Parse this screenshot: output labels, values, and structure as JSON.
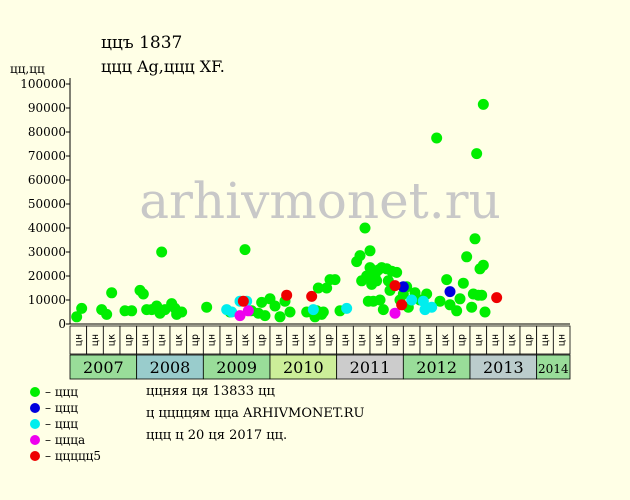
{
  "header": {
    "title_line1": "ццъ 1837",
    "title_line2": "ццц Ag,ццц XF.",
    "y_unit": "цц,цц"
  },
  "legend": [
    {
      "color": "#00ee00",
      "label": "– ццц"
    },
    {
      "color": "#0000dd",
      "label": "– ццц"
    },
    {
      "color": "#00eeee",
      "label": "– ццц"
    },
    {
      "color": "#ee00ee",
      "label": "– ццца"
    },
    {
      "color": "#ee0000",
      "label": "– ццццц5"
    }
  ],
  "info": {
    "line1": "ццняя ця 13833 цц",
    "line2": "ц ццццям цца ARHIVMONET.RU",
    "line3": "ццц ц 20 ця 2017 цц."
  },
  "watermark": "arhivmonet.ru",
  "chart_data": {
    "type": "scatter",
    "title": "ццъ 1837",
    "subtitle": "ццц Ag,ццц XF.",
    "ylabel": "цц,цц",
    "ylim": [
      0,
      100000
    ],
    "y_ticks": [
      0,
      10000,
      20000,
      30000,
      40000,
      50000,
      60000,
      70000,
      80000,
      90000,
      100000
    ],
    "grid": false,
    "legend_position": "bottom-left",
    "years": [
      {
        "label": "2007",
        "start": 0,
        "months": 4,
        "color": "#99dd99"
      },
      {
        "label": "2008",
        "start": 4,
        "months": 4,
        "color": "#99cccc"
      },
      {
        "label": "2009",
        "start": 8,
        "months": 4,
        "color": "#99dd99"
      },
      {
        "label": "2010",
        "start": 12,
        "months": 4,
        "color": "#ccee99"
      },
      {
        "label": "2011",
        "start": 16,
        "months": 4,
        "color": "#cccccc"
      },
      {
        "label": "2012",
        "start": 20,
        "months": 4,
        "color": "#99dd99"
      },
      {
        "label": "2013",
        "start": 24,
        "months": 4,
        "color": "#bbcccc"
      },
      {
        "label": "2014",
        "start": 28,
        "months": 2,
        "color": "#99dd99"
      }
    ],
    "month_labels": [
      "цн",
      "цн",
      "цк",
      "цр",
      "цн",
      "цн",
      "цк",
      "цр",
      "цн",
      "цн",
      "цк",
      "цр",
      "цн",
      "цн",
      "цк",
      "цр",
      "цн",
      "цн",
      "цк",
      "цр",
      "цн",
      "цн",
      "цк",
      "цр",
      "цн",
      "цн",
      "цк",
      "цр",
      "цн",
      "цн"
    ],
    "series": [
      {
        "color": "#00ee00",
        "points": [
          [
            0.4,
            3000
          ],
          [
            0.7,
            6500
          ],
          [
            1.9,
            6000
          ],
          [
            2.2,
            4000
          ],
          [
            2.5,
            13000
          ],
          [
            3.3,
            5500
          ],
          [
            3.7,
            5500
          ],
          [
            4.2,
            14000
          ],
          [
            4.4,
            12500
          ],
          [
            4.6,
            6000
          ],
          [
            4.9,
            6000
          ],
          [
            5.2,
            7500
          ],
          [
            5.4,
            4500
          ],
          [
            5.7,
            6000
          ],
          [
            5.5,
            30000
          ],
          [
            6.1,
            8500
          ],
          [
            6.3,
            6500
          ],
          [
            6.4,
            4000
          ],
          [
            6.7,
            5000
          ],
          [
            8.2,
            7000
          ],
          [
            9.6,
            5000
          ],
          [
            10.5,
            31000
          ],
          [
            10.9,
            5500
          ],
          [
            11.3,
            4500
          ],
          [
            11.5,
            9000
          ],
          [
            11.7,
            3500
          ],
          [
            12.0,
            10500
          ],
          [
            12.3,
            7500
          ],
          [
            12.6,
            3000
          ],
          [
            12.9,
            9500
          ],
          [
            13.2,
            5000
          ],
          [
            14.2,
            5000
          ],
          [
            14.5,
            5000
          ],
          [
            14.7,
            3000
          ],
          [
            14.8,
            5500
          ],
          [
            14.9,
            15000
          ],
          [
            15.1,
            4000
          ],
          [
            15.2,
            5000
          ],
          [
            15.4,
            15000
          ],
          [
            15.6,
            18500
          ],
          [
            15.9,
            18500
          ],
          [
            16.2,
            5500
          ],
          [
            17.2,
            26000
          ],
          [
            17.4,
            28500
          ],
          [
            17.5,
            18000
          ],
          [
            17.7,
            40000
          ],
          [
            17.8,
            20000
          ],
          [
            17.9,
            9500
          ],
          [
            18.0,
            30500
          ],
          [
            18.0,
            23500
          ],
          [
            18.1,
            16500
          ],
          [
            18.2,
            9500
          ],
          [
            18.3,
            20000
          ],
          [
            18.4,
            18000
          ],
          [
            18.5,
            22500
          ],
          [
            18.6,
            10000
          ],
          [
            18.7,
            23500
          ],
          [
            18.8,
            6000
          ],
          [
            19.0,
            23000
          ],
          [
            19.1,
            18000
          ],
          [
            19.2,
            14000
          ],
          [
            19.3,
            22000
          ],
          [
            19.6,
            21500
          ],
          [
            19.8,
            10000
          ],
          [
            20.0,
            12500
          ],
          [
            20.2,
            15500
          ],
          [
            20.3,
            7000
          ],
          [
            20.7,
            13000
          ],
          [
            21.0,
            10000
          ],
          [
            21.4,
            12500
          ],
          [
            22.0,
            77500
          ],
          [
            22.2,
            9500
          ],
          [
            22.6,
            18500
          ],
          [
            22.8,
            8000
          ],
          [
            23.2,
            5500
          ],
          [
            23.4,
            10500
          ],
          [
            23.6,
            17000
          ],
          [
            23.8,
            28000
          ],
          [
            24.1,
            7000
          ],
          [
            24.2,
            12500
          ],
          [
            24.3,
            35500
          ],
          [
            24.4,
            71000
          ],
          [
            24.5,
            12000
          ],
          [
            24.6,
            23000
          ],
          [
            24.7,
            12000
          ],
          [
            24.8,
            24500
          ],
          [
            24.9,
            5000
          ],
          [
            24.8,
            91500
          ]
        ]
      },
      {
        "color": "#0000dd",
        "points": [
          [
            20.0,
            15500
          ],
          [
            22.8,
            13500
          ]
        ]
      },
      {
        "color": "#00eeee",
        "points": [
          [
            9.4,
            6000
          ],
          [
            9.7,
            5000
          ],
          [
            10.2,
            9500
          ],
          [
            10.6,
            9500
          ],
          [
            14.6,
            6000
          ],
          [
            16.6,
            6500
          ],
          [
            20.5,
            10000
          ],
          [
            21.2,
            9500
          ],
          [
            21.3,
            6000
          ],
          [
            21.7,
            7000
          ]
        ]
      },
      {
        "color": "#ee00ee",
        "points": [
          [
            10.2,
            3500
          ],
          [
            10.7,
            5500
          ],
          [
            19.5,
            4500
          ]
        ]
      },
      {
        "color": "#ee0000",
        "points": [
          [
            10.4,
            9500
          ],
          [
            13.0,
            12000
          ],
          [
            14.5,
            11500
          ],
          [
            19.5,
            16000
          ],
          [
            19.9,
            8000
          ],
          [
            25.6,
            11000
          ]
        ]
      }
    ]
  }
}
